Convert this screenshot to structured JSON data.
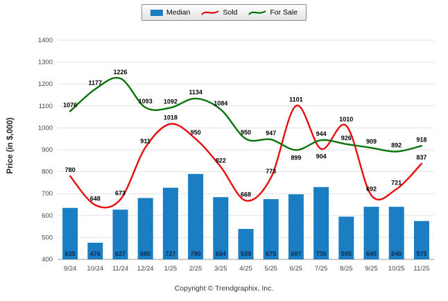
{
  "chart_data": {
    "type": "combo",
    "categories": [
      "9/24",
      "10/24",
      "11/24",
      "12/24",
      "1/25",
      "2/25",
      "3/25",
      "4/25",
      "5/25",
      "6/25",
      "7/25",
      "8/25",
      "9/25",
      "10/25",
      "11/25"
    ],
    "series": [
      {
        "name": "Median",
        "type": "bar",
        "color": "#1b7ec2",
        "values": [
          635,
          476,
          627,
          680,
          727,
          790,
          684,
          539,
          675,
          697,
          730,
          595,
          640,
          640,
          575
        ]
      },
      {
        "name": "Sold",
        "type": "line",
        "color": "#e80c0c",
        "values": [
          780,
          648,
          673,
          911,
          1018,
          950,
          822,
          668,
          773,
          1101,
          904,
          1010,
          692,
          721,
          837
        ]
      },
      {
        "name": "For Sale",
        "type": "line",
        "color": "#067306",
        "values": [
          1076,
          1177,
          1226,
          1093,
          1092,
          1134,
          1084,
          950,
          947,
          899,
          944,
          926,
          909,
          892,
          918
        ]
      }
    ],
    "ylabel": "Price (in $,000)",
    "ylim": [
      400,
      1400
    ],
    "ytick_step": 100,
    "grid": true,
    "legend_position": "top-center"
  },
  "footer": {
    "copyright": "Copyright © Trendgraphix, Inc."
  }
}
